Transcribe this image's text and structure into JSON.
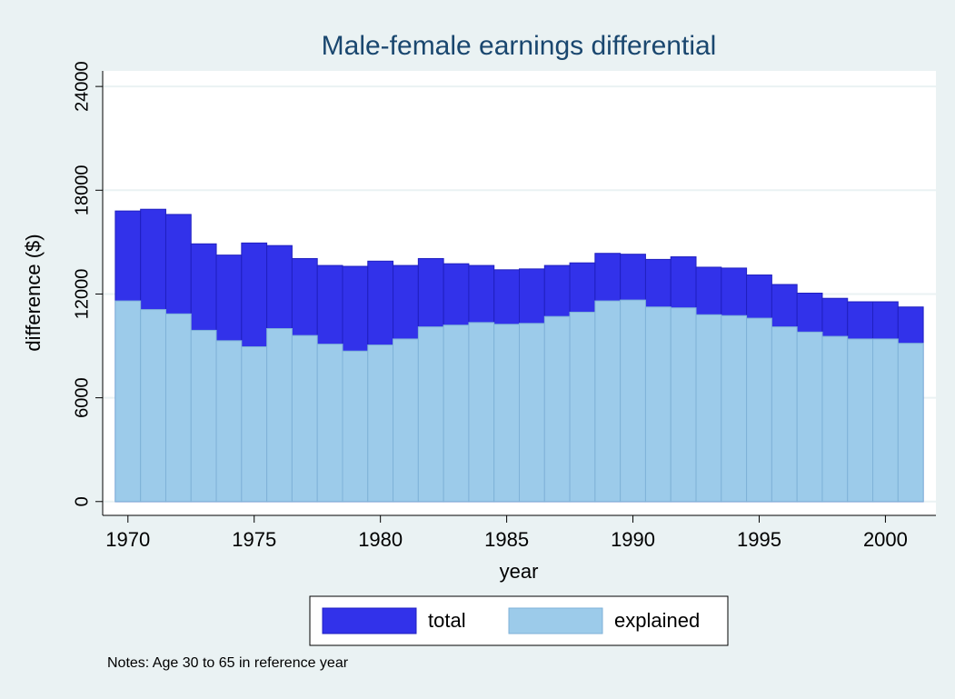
{
  "chart_data": {
    "type": "bar",
    "title": "Male-female earnings differential",
    "x_label": "year",
    "y_label": "difference ($)",
    "note": "Notes: Age 30 to 65 in reference year",
    "x": [
      1970,
      1971,
      1972,
      1973,
      1974,
      1975,
      1976,
      1977,
      1978,
      1979,
      1980,
      1981,
      1982,
      1983,
      1984,
      1985,
      1986,
      1987,
      1988,
      1989,
      1990,
      1991,
      1992,
      1993,
      1994,
      1995,
      1996,
      1997,
      1998,
      1999,
      2000,
      2001
    ],
    "series": [
      {
        "name": "total",
        "color": "#3232ea",
        "values": [
          16800,
          16900,
          16600,
          14900,
          14250,
          14950,
          14800,
          14050,
          13650,
          13600,
          13900,
          13650,
          14050,
          13750,
          13650,
          13400,
          13450,
          13650,
          13800,
          14350,
          14300,
          14000,
          14150,
          13550,
          13500,
          13100,
          12550,
          12050,
          11750,
          11550,
          11550,
          11250
        ]
      },
      {
        "name": "explained",
        "color": "#9ccbea",
        "values": [
          11600,
          11100,
          10850,
          9900,
          9300,
          8950,
          10000,
          9600,
          9100,
          8700,
          9050,
          9400,
          10100,
          10200,
          10350,
          10250,
          10300,
          10700,
          10950,
          11600,
          11650,
          11250,
          11200,
          10800,
          10750,
          10600,
          10100,
          9800,
          9550,
          9400,
          9400,
          9150
        ]
      }
    ],
    "xlim": [
      1969,
      2002
    ],
    "xticks": [
      1970,
      1975,
      1980,
      1985,
      1990,
      1995,
      2000
    ],
    "ylim": [
      -800,
      24900
    ],
    "yticks": [
      0,
      6000,
      12000,
      18000,
      24000
    ],
    "grid": true,
    "legend": "bottom"
  }
}
